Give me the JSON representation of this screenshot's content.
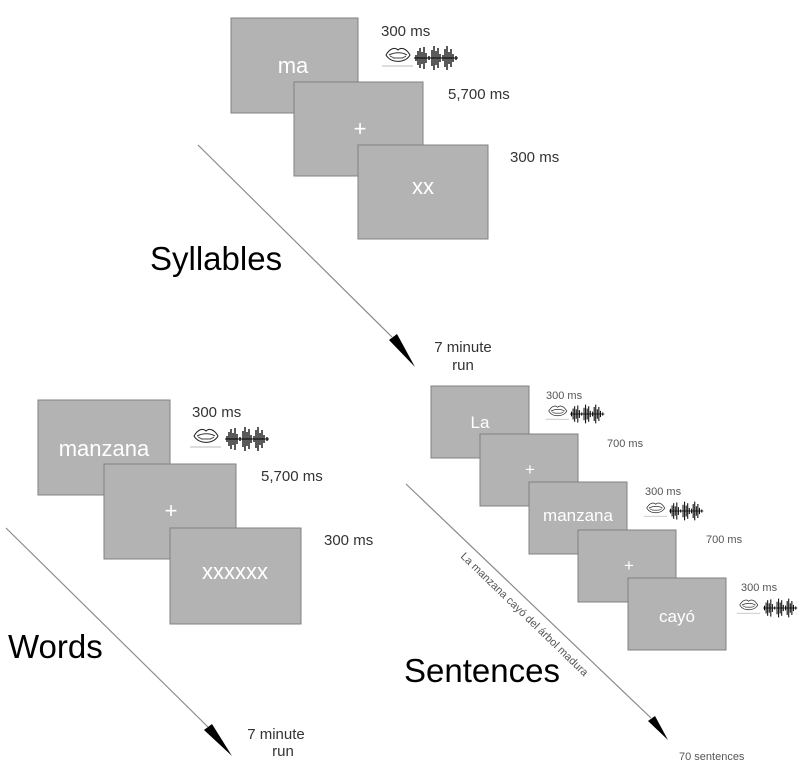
{
  "syllables": {
    "heading": "Syllables",
    "stimulus": "ma",
    "fixation": "+",
    "mask": "xx",
    "stim_duration": "300 ms",
    "fix_duration": "5,700 ms",
    "mask_duration": "300 ms",
    "run_line1": "7 minute",
    "run_line2": "run"
  },
  "words": {
    "heading": "Words",
    "stimulus": "manzana",
    "fixation": "+",
    "mask": "xxxxxx",
    "stim_duration": "300 ms",
    "fix_duration": "5,700 ms",
    "mask_duration": "300 ms",
    "run_line1": "7 minute",
    "run_line2": "run"
  },
  "sentences": {
    "heading": "Sentences",
    "word1": "La",
    "fix1": "+",
    "word2": "manzana",
    "fix2": "+",
    "word3": "cayó",
    "word1_duration": "300 ms",
    "fix1_duration": "700 ms",
    "word2_duration": "300 ms",
    "fix2_duration": "700 ms",
    "word3_duration": "300 ms",
    "example_sentence": "La manzana cayó del árbol madura",
    "count_label": "70 sentences"
  },
  "icons": [
    "lips-icon",
    "waveform-icon"
  ]
}
